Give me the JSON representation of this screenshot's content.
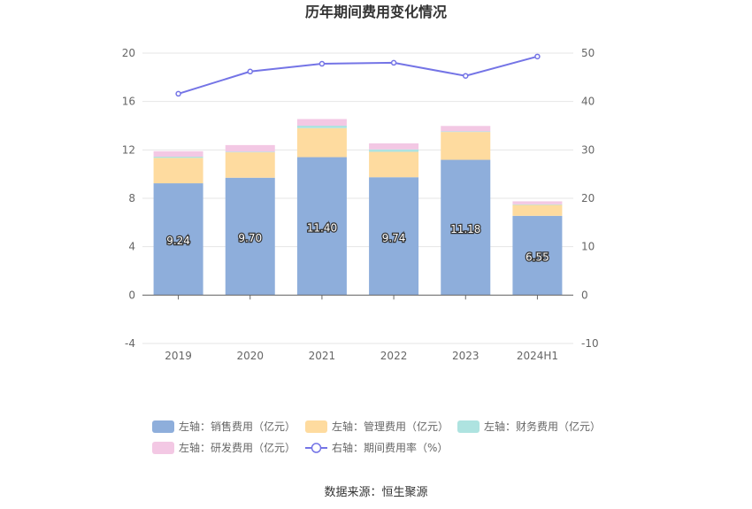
{
  "chart_data": {
    "type": "bar",
    "title": "历年期间费用变化情况",
    "categories": [
      "2019",
      "2020",
      "2021",
      "2022",
      "2023",
      "2024H1"
    ],
    "stacked": true,
    "left_axis": {
      "ylim": [
        -4,
        20
      ],
      "ticks": [
        "-4",
        "0",
        "4",
        "8",
        "12",
        "16",
        "20"
      ]
    },
    "right_axis": {
      "ylim": [
        -10,
        50
      ],
      "ticks": [
        "-10",
        "0",
        "10",
        "20",
        "30",
        "40",
        "50"
      ]
    },
    "series": [
      {
        "name": "左轴：销售费用（亿元）",
        "axis": "left",
        "kind": "bar",
        "color": "#8eaedb",
        "values": [
          9.24,
          9.7,
          11.4,
          9.74,
          11.18,
          6.55
        ],
        "labels": [
          "9.24",
          "9.70",
          "11.40",
          "9.74",
          "11.18",
          "6.55"
        ]
      },
      {
        "name": "左轴：管理费用（亿元）",
        "axis": "left",
        "kind": "bar",
        "color": "#fedb9f",
        "values": [
          2.1,
          2.1,
          2.4,
          2.1,
          2.3,
          0.9
        ]
      },
      {
        "name": "左轴：财务费用（亿元）",
        "axis": "left",
        "kind": "bar",
        "color": "#aee3e0",
        "values": [
          0.1,
          0.05,
          0.2,
          0.2,
          0.05,
          0.05
        ]
      },
      {
        "name": "左轴：研发费用（亿元）",
        "axis": "left",
        "kind": "bar",
        "color": "#f3c8e4",
        "values": [
          0.45,
          0.55,
          0.55,
          0.5,
          0.45,
          0.25
        ]
      },
      {
        "name": "右轴：期间费用率（%）",
        "axis": "right",
        "kind": "line",
        "color": "#7474e6",
        "values": [
          41.6,
          46.2,
          47.8,
          48.0,
          45.3,
          49.3
        ]
      }
    ],
    "grid": true
  },
  "footer": {
    "source": "数据来源：恒生聚源"
  }
}
